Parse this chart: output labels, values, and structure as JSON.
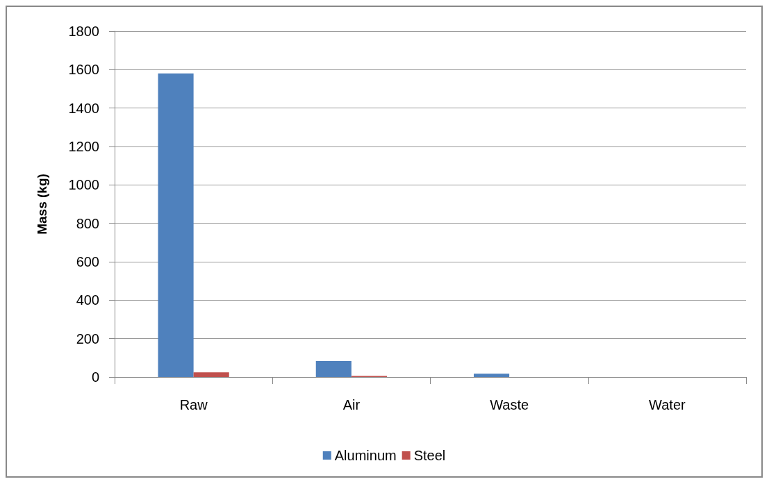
{
  "chart_data": {
    "type": "bar",
    "ylabel": "Mass (kg)",
    "categories": [
      "Raw",
      "Air",
      "Waste",
      "Water"
    ],
    "series": [
      {
        "name": "Aluminum",
        "color": "#4f81bd",
        "values": [
          1580,
          83,
          17,
          0
        ]
      },
      {
        "name": "Steel",
        "color": "#c0504d",
        "values": [
          24,
          5,
          0,
          0
        ]
      }
    ],
    "ylim": [
      0,
      1800
    ],
    "yticks": [
      0,
      200,
      400,
      600,
      800,
      1000,
      1200,
      1400,
      1600,
      1800
    ],
    "grid": "y",
    "legend": "bottom"
  }
}
